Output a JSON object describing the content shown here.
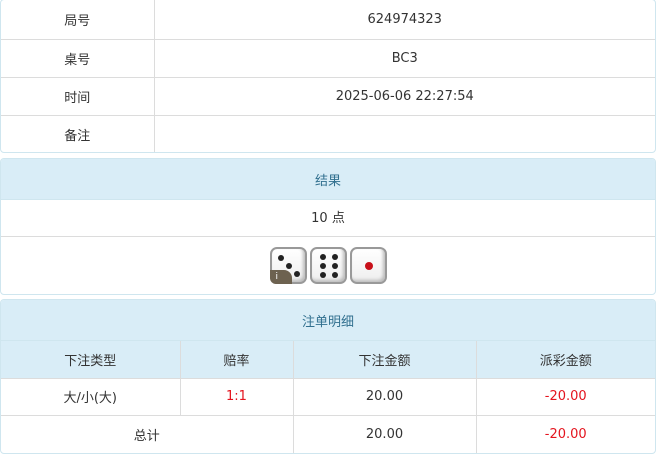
{
  "info": {
    "rows": [
      {
        "label": "局号",
        "value": "624974323"
      },
      {
        "label": "桌号",
        "value": "BC3"
      },
      {
        "label": "时间",
        "value": "2025-06-06 22:27:54"
      },
      {
        "label": "备注",
        "value": ""
      }
    ]
  },
  "result": {
    "title": "结果",
    "points": "10 点",
    "dice": [
      3,
      6,
      1
    ],
    "info_badge": "i"
  },
  "bets": {
    "title": "注单明细",
    "columns": [
      "下注类型",
      "赔率",
      "下注金额",
      "派彩金额"
    ],
    "rows": [
      {
        "type": "大/小(大)",
        "odds": "1:1",
        "amount": "20.00",
        "payout": "-20.00"
      }
    ],
    "total": {
      "label": "总计",
      "amount": "20.00",
      "payout": "-20.00"
    }
  },
  "colors": {
    "header_bg": "#d9edf7",
    "header_text": "#31708f",
    "negative": "#e4141e"
  }
}
